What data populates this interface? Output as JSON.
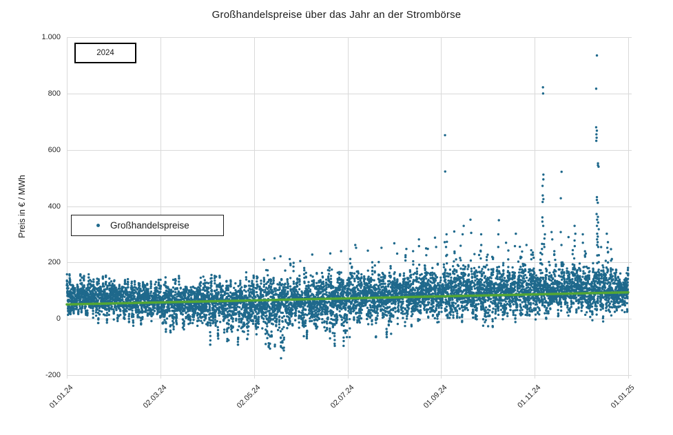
{
  "chart_data": {
    "type": "scatter",
    "title": "Großhandelspreise über das Jahr an der Strombörse",
    "ylabel": "Preis in € / MWh",
    "xlabel": "",
    "ylim": [
      -200,
      1000
    ],
    "xlim_days": [
      0,
      366
    ],
    "grid": true,
    "y_ticks": [
      {
        "value": 1000,
        "label": "1.000"
      },
      {
        "value": 800,
        "label": "800"
      },
      {
        "value": 600,
        "label": "600"
      },
      {
        "value": 400,
        "label": "400"
      },
      {
        "value": 200,
        "label": "200"
      },
      {
        "value": 0,
        "label": "0"
      },
      {
        "value": -200,
        "label": "-200"
      }
    ],
    "x_ticks": [
      {
        "day": 0,
        "label": "01.01.24"
      },
      {
        "day": 61,
        "label": "02.03.24"
      },
      {
        "day": 122,
        "label": "02.05.24"
      },
      {
        "day": 183,
        "label": "02.07.24"
      },
      {
        "day": 244,
        "label": "01.09.24"
      },
      {
        "day": 305,
        "label": "01.11.24"
      },
      {
        "day": 366,
        "label": "01.01.25"
      }
    ],
    "legend": {
      "series_label": "Großhandelspreise",
      "year_box_label": "2024",
      "position": "middle-left"
    },
    "colors": {
      "points": "#1f698c",
      "trend": "#53a634",
      "grid": "#d9d9d9",
      "title_text": "#1a1a1a",
      "axis_text": "#262626",
      "box_border": "#000000",
      "background": "#ffffff"
    },
    "trend_line": {
      "x_days": [
        0,
        366
      ],
      "values": [
        51,
        94
      ]
    },
    "generation": {
      "seed": 20241,
      "points_per_day": 24,
      "month_start_days": [
        0,
        31,
        60,
        91,
        121,
        152,
        182,
        213,
        244,
        274,
        305,
        335,
        366
      ],
      "monthly_center": [
        80,
        68,
        64,
        60,
        66,
        72,
        82,
        88,
        94,
        98,
        104,
        98
      ],
      "monthly_swing": [
        52,
        54,
        58,
        66,
        76,
        72,
        66,
        66,
        68,
        70,
        62,
        62
      ],
      "monthly_noise": [
        30,
        30,
        32,
        36,
        40,
        38,
        36,
        36,
        38,
        40,
        38,
        40
      ],
      "monthly_top_cap": [
        158,
        148,
        152,
        165,
        215,
        235,
        262,
        285,
        300,
        330,
        340,
        300
      ],
      "monthly_bottom_cap": [
        -15,
        -38,
        -48,
        -92,
        -140,
        -96,
        -65,
        -48,
        -38,
        -48,
        -28,
        -12
      ],
      "monthly_dip_prob": [
        0.1,
        0.18,
        0.28,
        0.42,
        0.48,
        0.38,
        0.28,
        0.22,
        0.16,
        0.16,
        0.08,
        0.18
      ],
      "monthly_dip_depth": [
        45,
        60,
        72,
        100,
        130,
        100,
        80,
        70,
        60,
        70,
        50,
        55
      ],
      "monthly_peak_prob": [
        0.18,
        0.15,
        0.15,
        0.2,
        0.3,
        0.32,
        0.36,
        0.42,
        0.46,
        0.5,
        0.5,
        0.45
      ],
      "monthly_peak_height": [
        38,
        34,
        36,
        46,
        70,
        82,
        92,
        102,
        110,
        120,
        112,
        100
      ],
      "weekend_offset": -14,
      "outliers": [
        [
          128,
          210
        ],
        [
          135,
          215
        ],
        [
          139,
          222
        ],
        [
          145,
          212
        ],
        [
          152,
          205
        ],
        [
          160,
          228
        ],
        [
          171,
          232
        ],
        [
          178,
          240
        ],
        [
          188,
          262
        ],
        [
          188,
          252
        ],
        [
          196,
          242
        ],
        [
          205,
          252
        ],
        [
          213,
          268
        ],
        [
          221,
          248
        ],
        [
          229,
          282
        ],
        [
          229,
          258
        ],
        [
          234,
          250
        ],
        [
          240,
          288
        ],
        [
          240,
          255
        ],
        [
          246,
          652
        ],
        [
          246,
          523
        ],
        [
          247,
          300
        ],
        [
          247,
          255
        ],
        [
          252,
          310
        ],
        [
          258,
          330
        ],
        [
          258,
          300
        ],
        [
          263,
          352
        ],
        [
          263,
          305
        ],
        [
          270,
          300
        ],
        [
          270,
          262
        ],
        [
          281,
          350
        ],
        [
          281,
          300
        ],
        [
          281,
          255
        ],
        [
          286,
          270
        ],
        [
          292,
          302
        ],
        [
          292,
          258
        ],
        [
          299,
          262
        ],
        [
          310,
          822
        ],
        [
          310,
          800
        ],
        [
          310,
          512
        ],
        [
          310,
          495
        ],
        [
          310,
          472
        ],
        [
          310,
          438
        ],
        [
          310,
          425
        ],
        [
          310,
          415
        ],
        [
          310,
          360
        ],
        [
          310,
          345
        ],
        [
          310,
          330
        ],
        [
          311,
          300
        ],
        [
          311,
          285
        ],
        [
          311,
          265
        ],
        [
          311,
          255
        ],
        [
          316,
          308
        ],
        [
          316,
          282
        ],
        [
          322,
          522
        ],
        [
          322,
          428
        ],
        [
          322,
          308
        ],
        [
          322,
          262
        ],
        [
          327,
          290
        ],
        [
          331,
          330
        ],
        [
          331,
          302
        ],
        [
          331,
          278
        ],
        [
          331,
          258
        ],
        [
          336,
          300
        ],
        [
          336,
          270
        ],
        [
          345,
          935
        ],
        [
          345,
          817
        ],
        [
          345,
          680
        ],
        [
          345,
          668
        ],
        [
          345,
          655
        ],
        [
          345,
          643
        ],
        [
          345,
          632
        ],
        [
          346,
          552
        ],
        [
          346,
          545
        ],
        [
          346,
          540
        ],
        [
          345,
          432
        ],
        [
          345,
          422
        ],
        [
          346,
          412
        ],
        [
          345,
          372
        ],
        [
          346,
          362
        ],
        [
          345,
          352
        ],
        [
          346,
          342
        ],
        [
          345,
          330
        ],
        [
          346,
          318
        ],
        [
          345,
          302
        ],
        [
          346,
          292
        ],
        [
          345,
          282
        ],
        [
          346,
          272
        ],
        [
          345,
          262
        ],
        [
          346,
          255
        ],
        [
          352,
          302
        ],
        [
          352,
          272
        ],
        [
          352,
          252
        ]
      ]
    }
  }
}
